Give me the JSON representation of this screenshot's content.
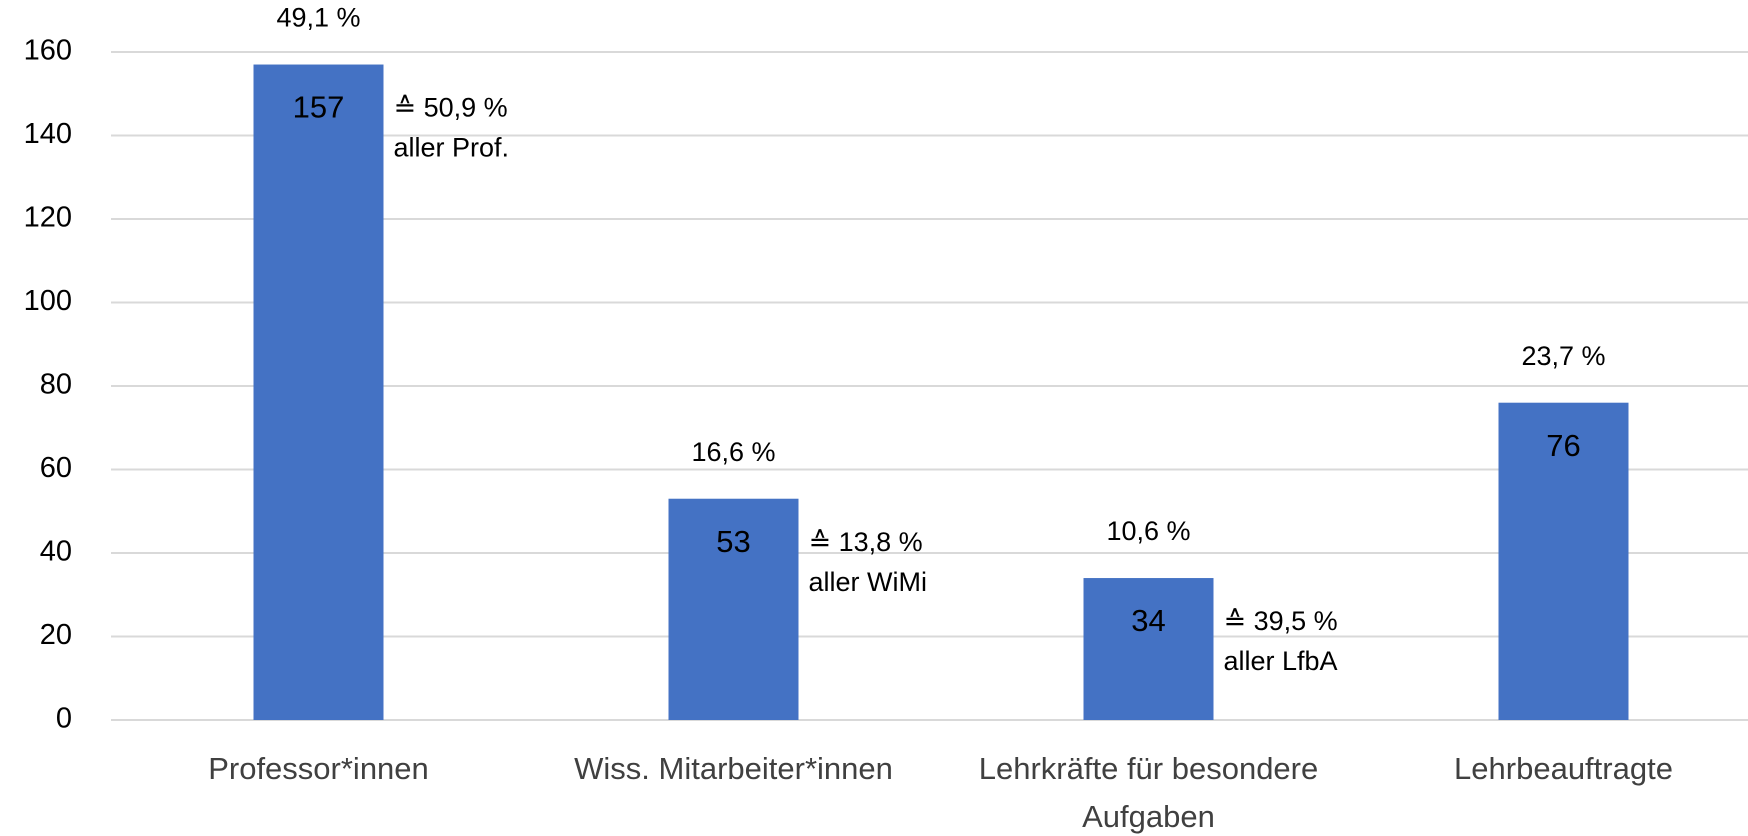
{
  "chart_data": {
    "type": "bar",
    "categories": [
      "Professor*innen",
      "Wiss. Mitarbeiter*innen",
      "Lehrkräfte für besondere Aufgaben",
      "Lehrbeauftragte"
    ],
    "values": [
      157,
      53,
      34,
      76
    ],
    "share_labels": [
      "49,1 %",
      "16,6 %",
      "10,6 %",
      "23,7 %"
    ],
    "annotations": [
      [
        "≙ 50,9 %",
        "aller Prof."
      ],
      [
        "≙ 13,8 %",
        "aller WiMi"
      ],
      [
        "≙ 39,5 %",
        "aller LfbA"
      ],
      null
    ],
    "color": "#4472c4",
    "ylim": [
      0,
      160
    ],
    "yticks": [
      0,
      20,
      40,
      60,
      80,
      100,
      120,
      140,
      160
    ],
    "grid": true
  }
}
